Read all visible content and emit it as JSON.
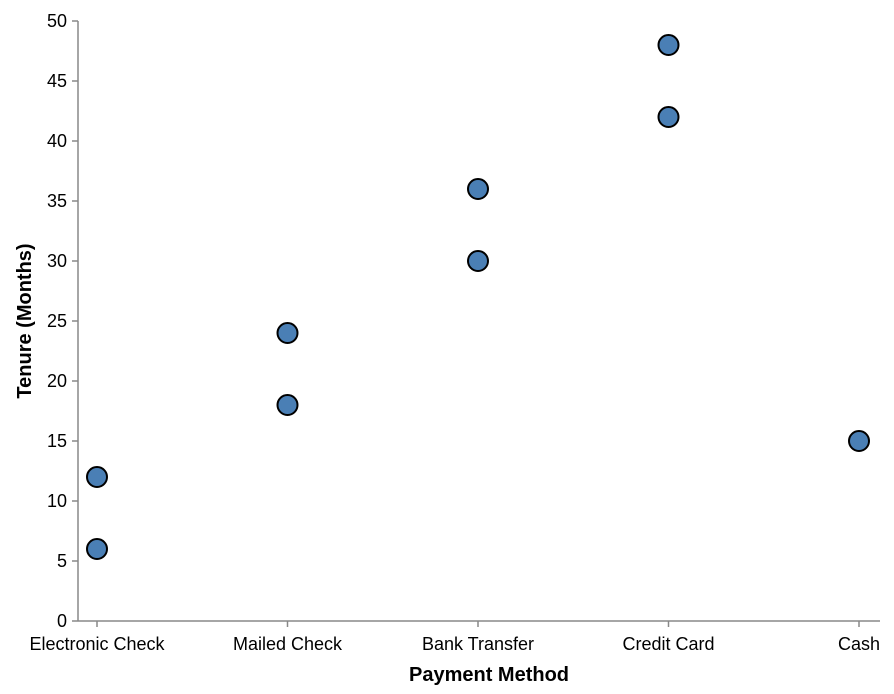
{
  "chart_data": {
    "type": "scatter",
    "xlabel": "Payment Method",
    "ylabel": "Tenure (Months)",
    "categories": [
      "Electronic Check",
      "Mailed Check",
      "Bank Transfer",
      "Credit Card",
      "Cash"
    ],
    "ylim": [
      0,
      50
    ],
    "yticks": [
      0,
      5,
      10,
      15,
      20,
      25,
      30,
      35,
      40,
      45,
      50
    ],
    "grid": false,
    "point_color": "#4a7fb5",
    "points": [
      {
        "x": "Electronic Check",
        "y": 6
      },
      {
        "x": "Electronic Check",
        "y": 12
      },
      {
        "x": "Mailed Check",
        "y": 18
      },
      {
        "x": "Mailed Check",
        "y": 24
      },
      {
        "x": "Bank Transfer",
        "y": 30
      },
      {
        "x": "Bank Transfer",
        "y": 36
      },
      {
        "x": "Credit Card",
        "y": 42
      },
      {
        "x": "Credit Card",
        "y": 48
      },
      {
        "x": "Cash",
        "y": 15
      }
    ]
  }
}
